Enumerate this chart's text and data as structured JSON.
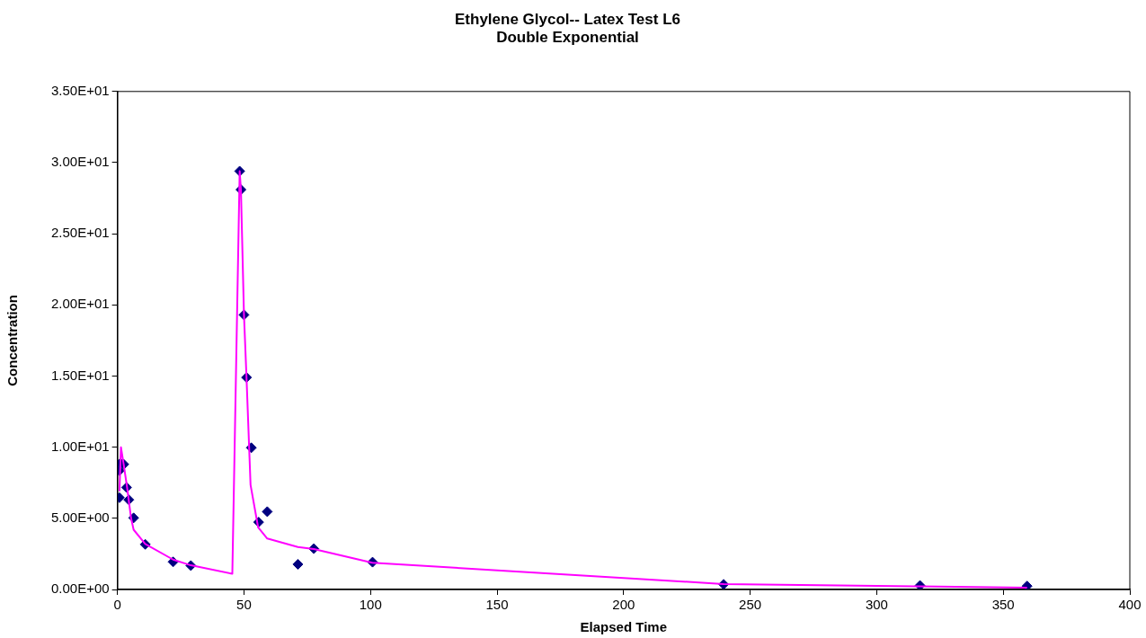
{
  "chart_data": {
    "type": "scatter",
    "title": "Ethylene Glycol-- Latex Test L6",
    "subtitle": "Double Exponential",
    "xlabel": "Elapsed Time",
    "ylabel": "Concentration",
    "xlim": [
      0,
      400
    ],
    "xticks": [
      0,
      50,
      100,
      150,
      200,
      250,
      300,
      350,
      400
    ],
    "ylim": [
      0,
      35
    ],
    "yticks": [
      {
        "value": 0,
        "label": "0.00E+00"
      },
      {
        "value": 5,
        "label": "5.00E+00"
      },
      {
        "value": 10,
        "label": "1.00E+01"
      },
      {
        "value": 15,
        "label": "1.50E+01"
      },
      {
        "value": 20,
        "label": "2.00E+01"
      },
      {
        "value": 25,
        "label": "2.50E+01"
      },
      {
        "value": 30,
        "label": "3.00E+01"
      },
      {
        "value": 35,
        "label": "3.50E+01"
      }
    ],
    "grid": false,
    "legend": false,
    "series": [
      {
        "type": "scatter",
        "color": "#000080",
        "marker": "diamond",
        "x": [
          0.8,
          0.8,
          1.2,
          2.5,
          3.6,
          4.5,
          6.4,
          11,
          22,
          29,
          48.3,
          48.8,
          50,
          51,
          52.9,
          55.8,
          59.2,
          71.3,
          77.6,
          100.8,
          239.5,
          317.1,
          359.4
        ],
        "values": [
          6.45,
          8.35,
          8.88,
          8.8,
          7.17,
          6.3,
          5.03,
          3.17,
          1.94,
          1.68,
          29.4,
          28.1,
          19.3,
          14.9,
          9.96,
          4.73,
          5.47,
          1.77,
          2.87,
          1.92,
          0.36,
          0.28,
          0.24
        ]
      },
      {
        "type": "line",
        "color": "#ff00ff",
        "marker": "none",
        "line_style": "solid",
        "x": [
          0.8,
          1.4,
          2.5,
          3.8,
          5.4,
          6.4,
          11,
          22,
          29,
          45.4,
          48.3,
          48.8,
          50,
          51,
          52.6,
          55.6,
          59.2,
          71.3,
          77.6,
          100.7,
          239.5,
          317,
          359.4
        ],
        "values": [
          6.9,
          10.0,
          8.75,
          7.2,
          5.0,
          4.2,
          3.2,
          2.1,
          1.7,
          1.1,
          29.4,
          28.1,
          19.3,
          14.9,
          7.35,
          4.36,
          3.58,
          2.98,
          2.84,
          1.88,
          0.38,
          0.22,
          0.13
        ]
      }
    ]
  }
}
